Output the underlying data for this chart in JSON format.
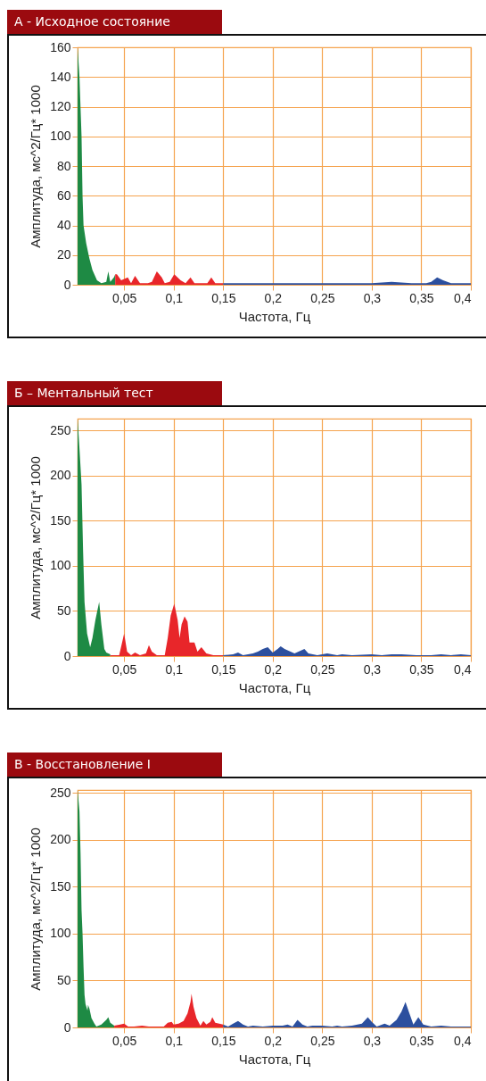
{
  "chart_data": [
    {
      "type": "area",
      "title": "А - Исходное состояние",
      "xlabel": "Частота, Гц",
      "ylabel": "Амплитуда, мс^2/Гц* 1000",
      "xlim": [
        0.003,
        0.4
      ],
      "ylim": [
        0,
        160
      ],
      "yticks": [
        0,
        20,
        40,
        60,
        80,
        100,
        120,
        140,
        160
      ],
      "xticks": [
        {
          "value": 0.05,
          "label": "0,05"
        },
        {
          "value": 0.1,
          "label": "0,1"
        },
        {
          "value": 0.15,
          "label": "0,15"
        },
        {
          "value": 0.2,
          "label": "0,2"
        },
        {
          "value": 0.25,
          "label": "0,25"
        },
        {
          "value": 0.3,
          "label": "0,3"
        },
        {
          "value": 0.35,
          "label": "0,35"
        },
        {
          "value": 0.4,
          "label": "0,4"
        }
      ],
      "grid": true,
      "series": [
        {
          "color": "#1e8a44",
          "x": [
            0.003,
            0.0049,
            0.007,
            0.008,
            0.009,
            0.0117,
            0.0148,
            0.018,
            0.0226,
            0.027,
            0.032,
            0.034,
            0.036,
            0.0397,
            0.041
          ],
          "values": [
            160,
            140,
            100,
            60,
            40,
            28,
            18,
            10,
            3,
            1,
            2,
            9,
            2,
            5,
            7
          ]
        },
        {
          "color": "#e8262a",
          "x": [
            0.041,
            0.0427,
            0.047,
            0.0537,
            0.057,
            0.061,
            0.066,
            0.074,
            0.078,
            0.083,
            0.088,
            0.091,
            0.096,
            0.1006,
            0.107,
            0.112,
            0.117,
            0.121,
            0.134,
            0.138,
            0.142,
            0.15
          ],
          "values": [
            7,
            7,
            3,
            5,
            1,
            6,
            1,
            1,
            2,
            9,
            5,
            1,
            2,
            7,
            3,
            1,
            5,
            1,
            1,
            5,
            1,
            1
          ]
        },
        {
          "color": "#2c4f9e",
          "x": [
            0.15,
            0.16,
            0.18,
            0.2,
            0.25,
            0.3,
            0.32,
            0.34,
            0.355,
            0.36,
            0.366,
            0.372,
            0.38,
            0.39,
            0.4
          ],
          "values": [
            1,
            1,
            1,
            1,
            1,
            1,
            2,
            1,
            1,
            2,
            5,
            3,
            1,
            1,
            1
          ]
        }
      ]
    },
    {
      "type": "area",
      "title": "Б – Ментальный тест",
      "xlabel": "Частота, Гц",
      "ylabel": "Амплитуда, мс^2/Гц* 1000",
      "xlim": [
        0.003,
        0.4
      ],
      "ylim": [
        0,
        263
      ],
      "yticks": [
        0,
        50,
        100,
        150,
        200,
        250
      ],
      "xticks": [
        {
          "value": 0.05,
          "label": "0,05"
        },
        {
          "value": 0.1,
          "label": "0,1"
        },
        {
          "value": 0.15,
          "label": "0,15"
        },
        {
          "value": 0.2,
          "label": "0,2"
        },
        {
          "value": 0.25,
          "label": "0,25"
        },
        {
          "value": 0.3,
          "label": "0,3"
        },
        {
          "value": 0.35,
          "label": "0,35"
        },
        {
          "value": 0.4,
          "label": "0,4"
        }
      ],
      "grid": true,
      "series": [
        {
          "color": "#1e8a44",
          "x": [
            0.003,
            0.0049,
            0.007,
            0.0086,
            0.01,
            0.0126,
            0.0157,
            0.018,
            0.021,
            0.0248,
            0.027,
            0.03,
            0.032,
            0.036
          ],
          "values": [
            263,
            230,
            190,
            115,
            60,
            25,
            10,
            20,
            40,
            60,
            35,
            8,
            4,
            2
          ]
        },
        {
          "color": "#e8262a",
          "x": [
            0.036,
            0.045,
            0.05,
            0.053,
            0.057,
            0.061,
            0.066,
            0.072,
            0.075,
            0.078,
            0.083,
            0.091,
            0.094,
            0.097,
            0.1006,
            0.104,
            0.106,
            0.108,
            0.111,
            0.114,
            0.116,
            0.121,
            0.124,
            0.128,
            0.133,
            0.14,
            0.15
          ],
          "values": [
            1,
            1,
            25,
            5,
            1,
            4,
            1,
            3,
            12,
            5,
            1,
            1,
            20,
            45,
            58,
            40,
            20,
            35,
            44,
            38,
            15,
            15,
            5,
            10,
            3,
            1,
            1
          ]
        },
        {
          "color": "#2c4f9e",
          "x": [
            0.15,
            0.16,
            0.165,
            0.17,
            0.18,
            0.185,
            0.19,
            0.195,
            0.2,
            0.205,
            0.208,
            0.212,
            0.218,
            0.222,
            0.228,
            0.232,
            0.236,
            0.245,
            0.255,
            0.265,
            0.27,
            0.28,
            0.3,
            0.31,
            0.32,
            0.33,
            0.345,
            0.36,
            0.37,
            0.38,
            0.39,
            0.4
          ],
          "values": [
            1,
            2,
            4,
            1,
            3,
            5,
            8,
            10,
            4,
            8,
            11,
            8,
            5,
            3,
            6,
            8,
            3,
            1,
            3,
            1,
            2,
            1,
            2,
            1,
            2,
            2,
            1,
            1,
            2,
            1,
            2,
            1
          ]
        }
      ]
    },
    {
      "type": "area",
      "title": "В - Восстановление I",
      "xlabel": "Частота, Гц",
      "ylabel": "Амплитуда, мс^2/Гц* 1000",
      "xlim": [
        0.003,
        0.4
      ],
      "ylim": [
        0,
        253
      ],
      "yticks": [
        0,
        50,
        100,
        150,
        200,
        250
      ],
      "xticks": [
        {
          "value": 0.05,
          "label": "0,05"
        },
        {
          "value": 0.1,
          "label": "0,1"
        },
        {
          "value": 0.15,
          "label": "0,15"
        },
        {
          "value": 0.2,
          "label": "0,2"
        },
        {
          "value": 0.25,
          "label": "0,25"
        },
        {
          "value": 0.3,
          "label": "0,3"
        },
        {
          "value": 0.35,
          "label": "0,35"
        },
        {
          "value": 0.4,
          "label": "0,4"
        }
      ],
      "grid": true,
      "series": [
        {
          "color": "#1e8a44",
          "x": [
            0.003,
            0.0049,
            0.006,
            0.007,
            0.008,
            0.009,
            0.01,
            0.011,
            0.013,
            0.0135,
            0.015,
            0.017,
            0.02,
            0.022,
            0.027,
            0.032,
            0.034,
            0.036,
            0.04
          ],
          "values": [
            253,
            230,
            185,
            125,
            100,
            65,
            35,
            25,
            18,
            24,
            20,
            10,
            4,
            1,
            3,
            8,
            11,
            5,
            2
          ]
        },
        {
          "color": "#e8262a",
          "x": [
            0.04,
            0.046,
            0.05,
            0.054,
            0.06,
            0.068,
            0.075,
            0.09,
            0.094,
            0.098,
            0.1,
            0.105,
            0.11,
            0.114,
            0.117,
            0.118,
            0.12,
            0.123,
            0.127,
            0.13,
            0.133,
            0.137,
            0.139,
            0.142,
            0.146,
            0.15
          ],
          "values": [
            2,
            3,
            4,
            1,
            1,
            2,
            1,
            1,
            5,
            6,
            3,
            4,
            7,
            15,
            27,
            36,
            22,
            10,
            2,
            7,
            3,
            6,
            11,
            5,
            4,
            3
          ]
        },
        {
          "color": "#2c4f9e",
          "x": [
            0.15,
            0.155,
            0.16,
            0.165,
            0.17,
            0.175,
            0.18,
            0.19,
            0.2,
            0.21,
            0.215,
            0.22,
            0.225,
            0.23,
            0.235,
            0.24,
            0.25,
            0.26,
            0.265,
            0.27,
            0.28,
            0.29,
            0.296,
            0.3,
            0.305,
            0.313,
            0.318,
            0.325,
            0.33,
            0.334,
            0.338,
            0.342,
            0.347,
            0.352,
            0.36,
            0.37,
            0.38,
            0.39,
            0.4
          ],
          "values": [
            3,
            1,
            4,
            7,
            3,
            1,
            2,
            1,
            2,
            2,
            3,
            1,
            8,
            3,
            1,
            2,
            2,
            1,
            2,
            1,
            2,
            4,
            11,
            6,
            1,
            4,
            2,
            8,
            17,
            27,
            15,
            3,
            11,
            3,
            1,
            2,
            1,
            1,
            1
          ]
        }
      ]
    }
  ]
}
